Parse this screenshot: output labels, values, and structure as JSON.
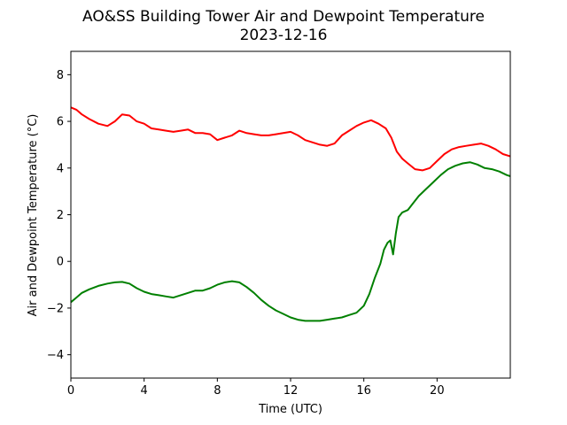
{
  "chart_data": {
    "type": "line",
    "title": "AO&SS Building Tower Air and Dewpoint Temperature",
    "subtitle": "2023-12-16",
    "xlabel": "Time (UTC)",
    "ylabel": "Air and Dewpoint Temperature (°C)",
    "xlim": [
      0,
      24
    ],
    "ylim": [
      -5,
      9
    ],
    "xticks": [
      0,
      4,
      8,
      12,
      16,
      20
    ],
    "yticks": [
      -4,
      -2,
      0,
      2,
      4,
      6,
      8
    ],
    "grid": false,
    "series": [
      {
        "color": "#ff0000",
        "x": [
          0,
          0.3,
          0.6,
          1.0,
          1.5,
          2.0,
          2.4,
          2.8,
          3.2,
          3.6,
          4.0,
          4.4,
          4.8,
          5.2,
          5.6,
          6.0,
          6.4,
          6.8,
          7.2,
          7.6,
          8.0,
          8.4,
          8.8,
          9.2,
          9.6,
          10.0,
          10.4,
          10.8,
          11.2,
          11.6,
          12.0,
          12.4,
          12.8,
          13.2,
          13.6,
          14.0,
          14.4,
          14.8,
          15.2,
          15.6,
          16.0,
          16.4,
          16.8,
          17.2,
          17.5,
          17.8,
          18.1,
          18.4,
          18.8,
          19.2,
          19.6,
          20.0,
          20.4,
          20.8,
          21.2,
          21.6,
          22.0,
          22.4,
          22.8,
          23.2,
          23.6,
          24.0
        ],
        "values": [
          6.6,
          6.5,
          6.3,
          6.1,
          5.9,
          5.8,
          6.0,
          6.3,
          6.25,
          6.0,
          5.9,
          5.7,
          5.65,
          5.6,
          5.55,
          5.6,
          5.65,
          5.5,
          5.5,
          5.45,
          5.2,
          5.3,
          5.4,
          5.6,
          5.5,
          5.45,
          5.4,
          5.4,
          5.45,
          5.5,
          5.55,
          5.4,
          5.2,
          5.1,
          5.0,
          4.95,
          5.05,
          5.4,
          5.6,
          5.8,
          5.95,
          6.05,
          5.9,
          5.7,
          5.3,
          4.7,
          4.4,
          4.2,
          3.95,
          3.9,
          4.0,
          4.3,
          4.6,
          4.8,
          4.9,
          4.95,
          5.0,
          5.05,
          4.95,
          4.8,
          4.6,
          4.5
        ]
      },
      {
        "color": "#008000",
        "x": [
          0,
          0.3,
          0.6,
          1.0,
          1.5,
          2.0,
          2.4,
          2.8,
          3.2,
          3.6,
          4.0,
          4.4,
          4.8,
          5.2,
          5.6,
          6.0,
          6.4,
          6.8,
          7.2,
          7.6,
          8.0,
          8.4,
          8.8,
          9.2,
          9.6,
          10.0,
          10.4,
          10.8,
          11.2,
          11.6,
          12.0,
          12.4,
          12.8,
          13.2,
          13.6,
          14.0,
          14.4,
          14.8,
          15.2,
          15.6,
          16.0,
          16.3,
          16.6,
          16.9,
          17.1,
          17.3,
          17.45,
          17.6,
          17.75,
          17.9,
          18.1,
          18.4,
          18.7,
          19.0,
          19.4,
          19.8,
          20.2,
          20.6,
          21.0,
          21.4,
          21.8,
          22.2,
          22.6,
          23.0,
          23.4,
          23.8,
          24.0
        ],
        "values": [
          -1.75,
          -1.55,
          -1.35,
          -1.2,
          -1.05,
          -0.95,
          -0.9,
          -0.88,
          -0.95,
          -1.15,
          -1.3,
          -1.4,
          -1.45,
          -1.5,
          -1.55,
          -1.45,
          -1.35,
          -1.25,
          -1.25,
          -1.15,
          -1.0,
          -0.9,
          -0.85,
          -0.9,
          -1.1,
          -1.35,
          -1.65,
          -1.9,
          -2.1,
          -2.25,
          -2.4,
          -2.5,
          -2.55,
          -2.55,
          -2.55,
          -2.5,
          -2.45,
          -2.4,
          -2.3,
          -2.2,
          -1.9,
          -1.4,
          -0.7,
          -0.1,
          0.5,
          0.8,
          0.9,
          0.3,
          1.2,
          1.9,
          2.1,
          2.2,
          2.5,
          2.8,
          3.1,
          3.4,
          3.7,
          3.95,
          4.1,
          4.2,
          4.25,
          4.15,
          4.0,
          3.95,
          3.85,
          3.7,
          3.65
        ]
      }
    ]
  }
}
